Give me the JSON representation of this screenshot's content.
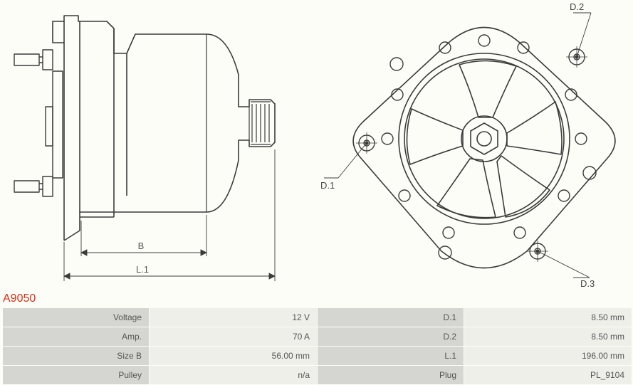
{
  "part_number": "A9050",
  "diagram": {
    "side_view": {
      "dim_B_label": "B",
      "dim_L1_label": "L.1"
    },
    "front_view": {
      "callout_D1": "D.1",
      "callout_D2": "D.2",
      "callout_D3": "D.3"
    },
    "colors": {
      "stroke": "#3b3b3a",
      "stroke_width": 1.4,
      "background": "#fdfdf8",
      "accent": "#d83018",
      "table_label_bg": "#d5d5d1",
      "table_value_bg": "#efefea",
      "table_text": "#555555"
    }
  },
  "specs": {
    "rows": [
      {
        "label1": "Voltage",
        "value1": "12 V",
        "label2": "D.1",
        "value2": "8.50 mm"
      },
      {
        "label1": "Amp.",
        "value1": "70 A",
        "label2": "D.2",
        "value2": "8.50 mm"
      },
      {
        "label1": "Size B",
        "value1": "56.00 mm",
        "label2": "L.1",
        "value2": "196.00 mm"
      },
      {
        "label1": "Pulley",
        "value1": "n/a",
        "label2": "Plug",
        "value2": "PL_9104"
      }
    ]
  }
}
